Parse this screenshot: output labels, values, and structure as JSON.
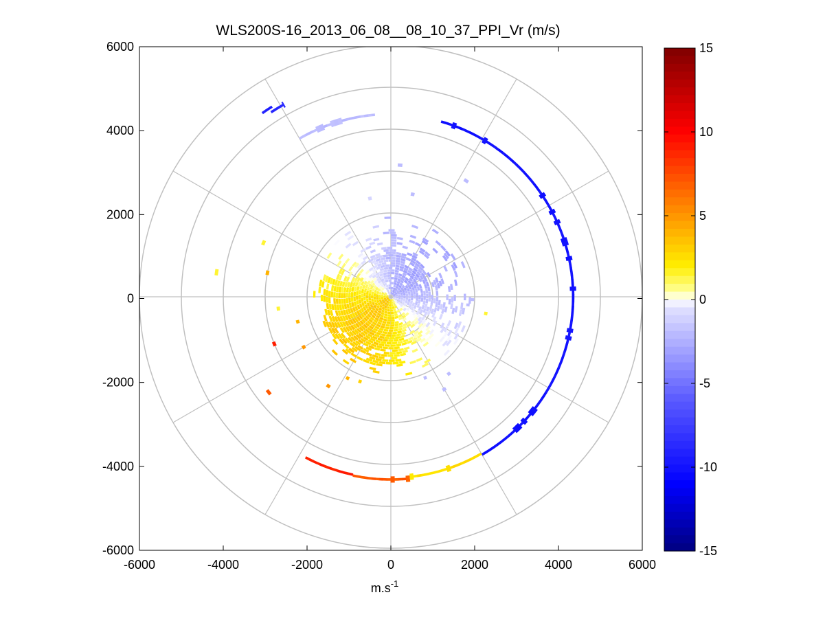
{
  "chart_data": {
    "type": "heatmap",
    "title": "WLS200S-16_2013_06_08__08_10_37_PPI_Vr (m/s)",
    "xlabel": "m.s",
    "xlabel_sup": "-1",
    "ylabel": "",
    "xlim": [
      -6000,
      6000
    ],
    "ylim": [
      -6000,
      6000
    ],
    "x_ticks": [
      -6000,
      -4000,
      -2000,
      0,
      2000,
      4000,
      6000
    ],
    "y_ticks": [
      6000,
      4000,
      2000,
      0,
      -2000,
      -4000,
      -6000
    ],
    "x_tick_labels": [
      "-6000",
      "-4000",
      "-2000",
      "0",
      "2000",
      "4000",
      "6000"
    ],
    "y_tick_labels": [
      "6000",
      "4000",
      "2000",
      "0",
      "-2000",
      "-4000",
      "-6000"
    ],
    "polar_grid": {
      "ring_radii": [
        1000,
        2000,
        3000,
        4000,
        5000,
        6000
      ],
      "spoke_angles_deg": [
        0,
        30,
        60,
        90,
        120,
        150,
        180,
        210,
        240,
        270,
        300,
        330
      ],
      "grid": true
    },
    "colorbar": {
      "range": [
        -15,
        15
      ],
      "ticks": [
        15,
        10,
        5,
        0,
        -5,
        -10,
        -15
      ],
      "tick_labels": [
        "15",
        "10",
        "5",
        "0",
        "-5",
        "-10",
        "-15"
      ],
      "colormap": [
        "#00007f",
        "#0000ff",
        "#e8e8ff",
        "#ffffff",
        "#ffff80",
        "#ffa500",
        "#ff0000",
        "#7f0000"
      ]
    },
    "series": [
      {
        "name": "",
        "kind": "inner_cloud",
        "r_range": [
          0,
          1900
        ],
        "color_profile": "blue_north_east_yellow_south_west"
      },
      {
        "kind": "arc",
        "r": 4350,
        "az_start_deg": 16,
        "az_end_deg": 150,
        "value": -10
      },
      {
        "kind": "arc",
        "r": 4340,
        "az_start_deg": 192,
        "az_end_deg": 208,
        "value": 9
      },
      {
        "kind": "arc",
        "r": 4360,
        "az_start_deg": 174,
        "az_end_deg": 192,
        "value": 7
      },
      {
        "kind": "arc",
        "r": 4320,
        "az_start_deg": 150,
        "az_end_deg": 174,
        "value": 2.5
      },
      {
        "kind": "arc",
        "r": 4360,
        "az_start_deg": 330,
        "az_end_deg": 355,
        "value": -2
      },
      {
        "kind": "arc",
        "r": 5350,
        "az_start_deg": 325,
        "az_end_deg": 328,
        "value": -9
      },
      {
        "kind": "arc",
        "r": 5250,
        "az_start_deg": 327,
        "az_end_deg": 331,
        "value": -9
      }
    ]
  }
}
